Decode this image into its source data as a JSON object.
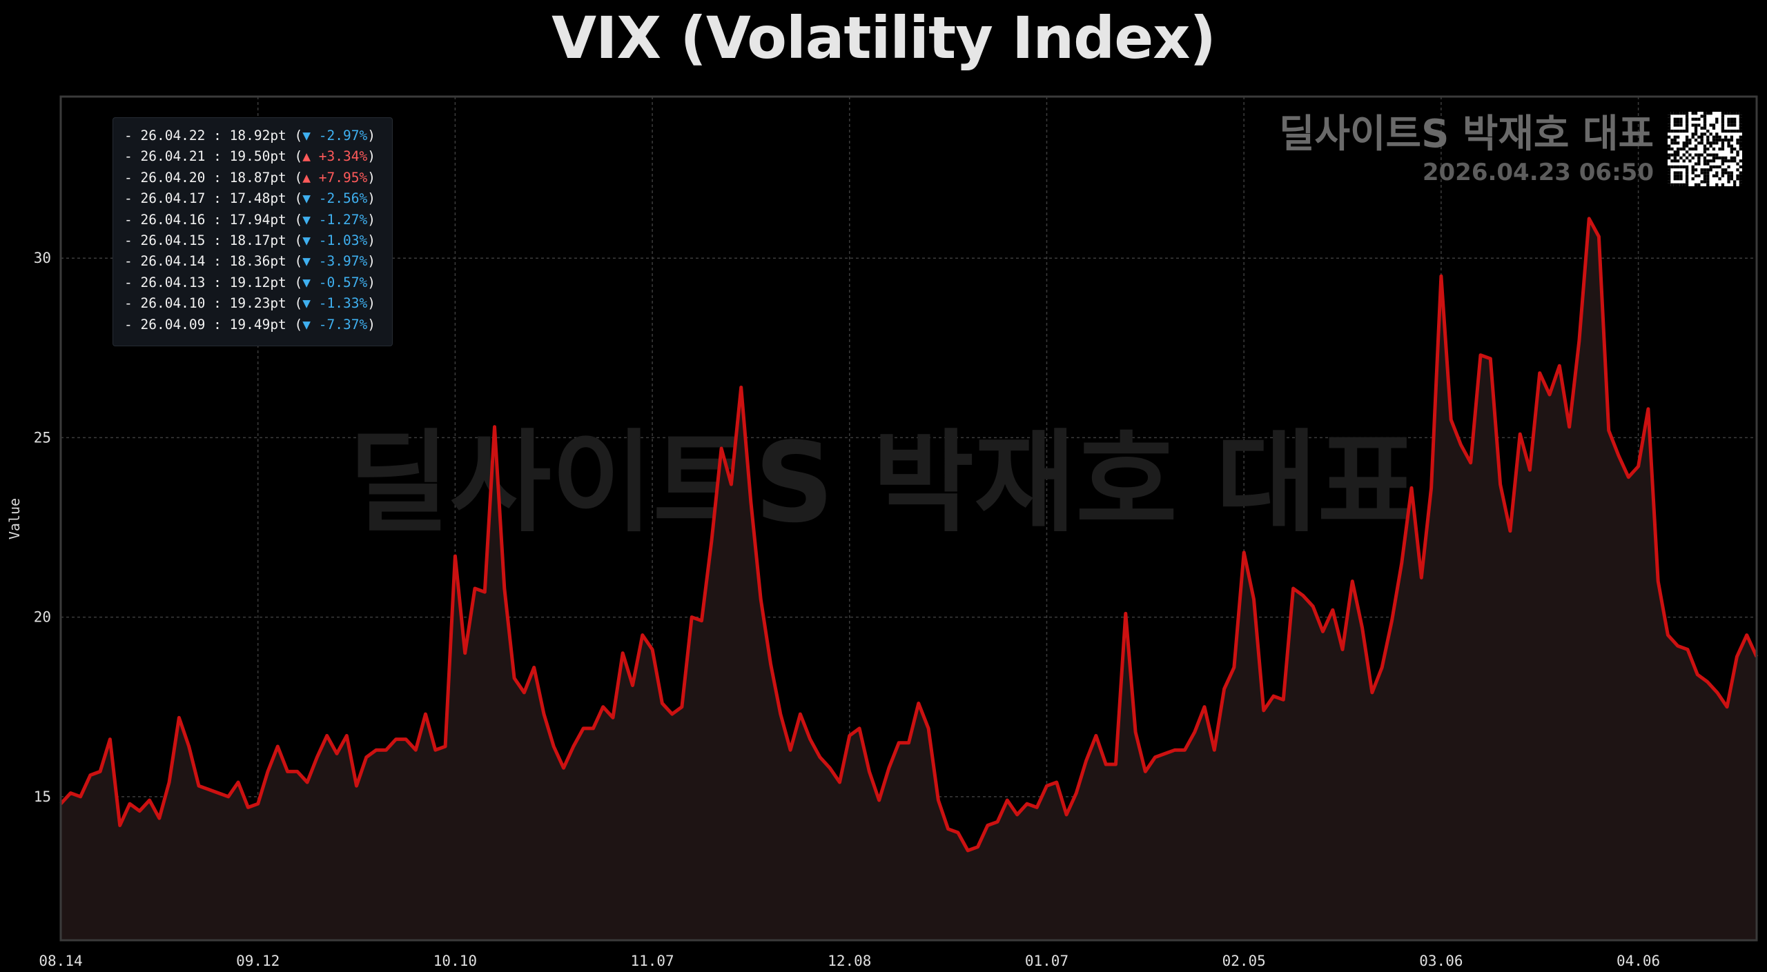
{
  "chart_data": {
    "type": "area",
    "title": "VIX (Volatility Index)",
    "ylabel": "Value",
    "xlabel": "",
    "ylim": [
      11,
      34.5
    ],
    "yticks": [
      15,
      20,
      25,
      30
    ],
    "xticks": [
      {
        "label": "08.14",
        "index": 0
      },
      {
        "label": "09.12",
        "index": 20
      },
      {
        "label": "10.10",
        "index": 40
      },
      {
        "label": "11.07",
        "index": 60
      },
      {
        "label": "12.08",
        "index": 80
      },
      {
        "label": "01.07",
        "index": 100
      },
      {
        "label": "02.05",
        "index": 120
      },
      {
        "label": "03.06",
        "index": 140
      },
      {
        "label": "04.06",
        "index": 160
      }
    ],
    "grid": true,
    "line_color": "#cc1111",
    "fill_color": "#1e1414",
    "values": [
      14.8,
      15.1,
      15.0,
      15.6,
      15.7,
      16.6,
      14.2,
      14.8,
      14.6,
      14.9,
      14.4,
      15.4,
      17.2,
      16.4,
      15.3,
      15.2,
      15.1,
      15.0,
      15.4,
      14.7,
      14.8,
      15.7,
      16.4,
      15.7,
      15.7,
      15.4,
      16.1,
      16.7,
      16.2,
      16.7,
      15.3,
      16.1,
      16.3,
      16.3,
      16.6,
      16.6,
      16.3,
      17.3,
      16.3,
      16.4,
      21.7,
      19.0,
      20.8,
      20.7,
      25.3,
      20.8,
      18.3,
      17.9,
      18.6,
      17.3,
      16.4,
      15.8,
      16.4,
      16.9,
      16.9,
      17.5,
      17.2,
      19.0,
      18.1,
      19.5,
      19.1,
      17.6,
      17.3,
      17.5,
      20.0,
      19.9,
      22.1,
      24.7,
      23.7,
      26.4,
      23.2,
      20.5,
      18.7,
      17.3,
      16.3,
      17.3,
      16.6,
      16.1,
      15.8,
      15.4,
      16.7,
      16.9,
      15.7,
      14.9,
      15.8,
      16.5,
      16.5,
      17.6,
      16.9,
      14.9,
      14.1,
      14.0,
      13.5,
      13.6,
      14.2,
      14.3,
      14.9,
      14.5,
      14.8,
      14.7,
      15.3,
      15.4,
      14.5,
      15.1,
      16.0,
      16.7,
      15.9,
      15.9,
      20.1,
      16.8,
      15.7,
      16.1,
      16.2,
      16.3,
      16.3,
      16.8,
      17.5,
      16.3,
      18.0,
      18.6,
      21.8,
      20.5,
      17.4,
      17.8,
      17.7,
      20.8,
      20.6,
      20.3,
      19.6,
      20.2,
      19.1,
      21.0,
      19.7,
      17.9,
      18.6,
      19.9,
      21.5,
      23.6,
      21.1,
      23.6,
      29.5,
      25.5,
      24.8,
      24.3,
      27.3,
      27.2,
      23.7,
      22.4,
      25.1,
      24.1,
      26.8,
      26.2,
      27.0,
      25.3,
      27.7,
      31.1,
      30.6,
      25.2,
      24.5,
      23.9,
      24.2,
      25.8,
      21.0,
      19.5,
      19.2,
      19.1,
      18.4,
      18.2,
      17.9,
      17.5,
      18.9,
      19.5,
      18.9
    ]
  },
  "legend": {
    "rows": [
      {
        "text": "- 26.04.22 : 18.92pt (",
        "change": "▼ -2.97%",
        "dir": "down",
        "close": ")"
      },
      {
        "text": "- 26.04.21 : 19.50pt (",
        "change": "▲ +3.34%",
        "dir": "up",
        "close": ")"
      },
      {
        "text": "- 26.04.20 : 18.87pt (",
        "change": "▲ +7.95%",
        "dir": "up",
        "close": ")"
      },
      {
        "text": "- 26.04.17 : 17.48pt (",
        "change": "▼ -2.56%",
        "dir": "down",
        "close": ")"
      },
      {
        "text": "- 26.04.16 : 17.94pt (",
        "change": "▼ -1.27%",
        "dir": "down",
        "close": ")"
      },
      {
        "text": "- 26.04.15 : 18.17pt (",
        "change": "▼ -1.03%",
        "dir": "down",
        "close": ")"
      },
      {
        "text": "- 26.04.14 : 18.36pt (",
        "change": "▼ -3.97%",
        "dir": "down",
        "close": ")"
      },
      {
        "text": "- 26.04.13 : 19.12pt (",
        "change": "▼ -0.57%",
        "dir": "down",
        "close": ")"
      },
      {
        "text": "- 26.04.10 : 19.23pt (",
        "change": "▼ -1.33%",
        "dir": "down",
        "close": ")"
      },
      {
        "text": "- 26.04.09 : 19.49pt (",
        "change": "▼ -7.37%",
        "dir": "down",
        "close": ")"
      }
    ]
  },
  "brand": {
    "name": "딜사이트S 박재호 대표",
    "date": "2026.04.23 06:50",
    "watermark": "딜사이트S 박재호 대표"
  },
  "colors": {
    "background": "#000000",
    "line": "#cc1111",
    "area": "#1e1414",
    "down": "#3fb0f0",
    "up": "#ff5a5a"
  }
}
